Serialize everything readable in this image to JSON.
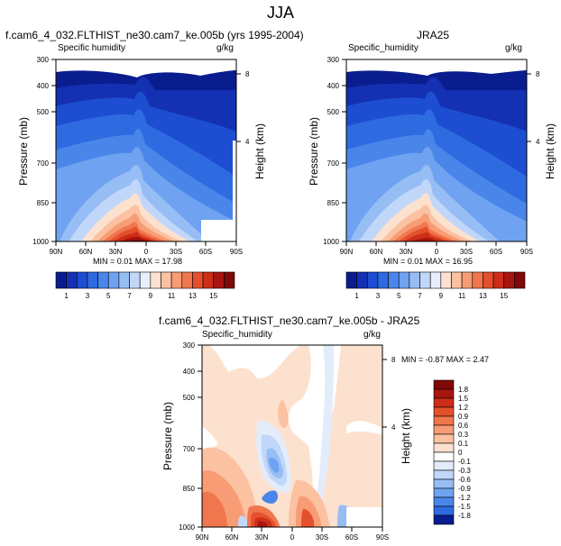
{
  "title": "JJA",
  "panels": [
    {
      "title": "f.cam6_4_032.FLTHIST_ne30.cam7_ke.005b (yrs 1995-2004)",
      "left_label": "Specific humidity",
      "right_label": "g/kg",
      "stats": "MIN =  0.01  MAX =  17.98"
    },
    {
      "title": "JRA25",
      "left_label": "Specific_humidity",
      "right_label": "g/kg",
      "stats": "MIN =  0.01  MAX =  16.95"
    },
    {
      "title": "f.cam6_4_032.FLTHIST_ne30.cam7_ke.005b - JRA25",
      "left_label": "Specific_humidity",
      "right_label": "g/kg",
      "stats": "MIN = -0.87  MAX =  2.47"
    }
  ],
  "axes": {
    "ylabel": "Pressure (mb)",
    "y2label": "Height (km)",
    "pressure_ticks": [
      "300",
      "400",
      "500",
      "700",
      "850",
      "1000"
    ],
    "height_ticks": [
      "8",
      "4"
    ],
    "lat_ticks": [
      "90N",
      "60N",
      "30N",
      "0",
      "30S",
      "60S",
      "90S"
    ]
  },
  "colorbars": {
    "field": {
      "labels": [
        "1",
        "3",
        "5",
        "7",
        "9",
        "11",
        "13",
        "15"
      ],
      "colors": [
        "#0a1d8f",
        "#1431b3",
        "#1d4ed1",
        "#2e6ae0",
        "#4a86ea",
        "#6fa2f0",
        "#97bdf5",
        "#c1d7f9",
        "#e8eefc",
        "#fde1cf",
        "#fbc1a1",
        "#f79c74",
        "#f0764d",
        "#e4502c",
        "#cc2e18",
        "#a8140f",
        "#7f0808"
      ]
    },
    "diff": {
      "labels": [
        "1.8",
        "1.5",
        "1.2",
        "0.9",
        "0.6",
        "0.3",
        "0.1",
        "0",
        "-0.1",
        "-0.3",
        "-0.6",
        "-0.9",
        "-1.2",
        "-1.5",
        "-1.8"
      ],
      "colors": [
        "#7f0808",
        "#a8140f",
        "#cc2e18",
        "#e4502c",
        "#f0764d",
        "#f79c74",
        "#fbc1a1",
        "#fde1cf",
        "#ffffff",
        "#e2ecfb",
        "#c1d7f9",
        "#97bdf5",
        "#6fa2f0",
        "#4a86ea",
        "#2e6ae0",
        "#0a1d8f"
      ]
    }
  },
  "chart_data": [
    {
      "type": "heatmap",
      "title": "f.cam6_4_032.FLTHIST_ne30.cam7_ke.005b (yrs 1995-2004)",
      "variable": "Specific humidity",
      "units": "g/kg",
      "xlabel": "",
      "ylabel": "Pressure (mb)",
      "y2label": "Height (km)",
      "x_range": [
        "90N",
        "90S"
      ],
      "y_range_mb": [
        300,
        1000
      ],
      "min": 0.01,
      "max": 17.98,
      "levels": [
        1,
        2,
        3,
        4,
        5,
        6,
        7,
        8,
        9,
        10,
        11,
        12,
        13,
        14,
        15,
        16
      ],
      "peak": {
        "lat": "10N",
        "pressure_mb": 1000,
        "value": 17.98
      }
    },
    {
      "type": "heatmap",
      "title": "JRA25",
      "variable": "Specific_humidity",
      "units": "g/kg",
      "xlabel": "",
      "ylabel": "Pressure (mb)",
      "y2label": "Height (km)",
      "x_range": [
        "90N",
        "90S"
      ],
      "y_range_mb": [
        300,
        1000
      ],
      "min": 0.01,
      "max": 16.95,
      "levels": [
        1,
        2,
        3,
        4,
        5,
        6,
        7,
        8,
        9,
        10,
        11,
        12,
        13,
        14,
        15,
        16
      ]
    },
    {
      "type": "heatmap",
      "title": "f.cam6_4_032.FLTHIST_ne30.cam7_ke.005b - JRA25",
      "variable": "Specific_humidity",
      "units": "g/kg",
      "xlabel": "",
      "ylabel": "Pressure (mb)",
      "y2label": "Height (km)",
      "x_range": [
        "90N",
        "90S"
      ],
      "y_range_mb": [
        300,
        1000
      ],
      "min": -0.87,
      "max": 2.47,
      "levels": [
        -1.8,
        -1.5,
        -1.2,
        -0.9,
        -0.6,
        -0.3,
        -0.1,
        0,
        0.1,
        0.3,
        0.6,
        0.9,
        1.2,
        1.5,
        1.8
      ]
    }
  ]
}
